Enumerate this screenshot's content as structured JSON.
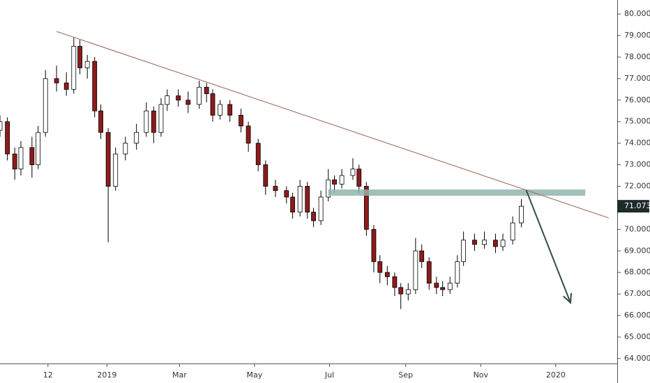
{
  "chart_data": {
    "type": "candlestick",
    "x": [
      -87,
      -81,
      -75,
      -70,
      -61,
      -56,
      -50,
      -41,
      -33,
      -27,
      -22,
      -16,
      -10,
      -5,
      1,
      7,
      15,
      24,
      32,
      38,
      44,
      49,
      58,
      66,
      75,
      81,
      86,
      92,
      100,
      109,
      115,
      123,
      129,
      137,
      146,
      151,
      157,
      163,
      168,
      174,
      180,
      185,
      191,
      200,
      205,
      211,
      217,
      222,
      228,
      234,
      239,
      245,
      251,
      256,
      262,
      268,
      273,
      279,
      285,
      290,
      299,
      307,
      316,
      322,
      330,
      337
    ],
    "open": [
      74.6,
      75.0,
      73.5,
      72.8,
      73.8,
      73.0,
      74.5,
      77.0,
      76.8,
      76.5,
      78.5,
      77.5,
      77.8,
      75.5,
      74.5,
      72.0,
      73.5,
      74.0,
      74.5,
      75.5,
      74.5,
      75.8,
      76.2,
      76.0,
      75.8,
      76.6,
      76.3,
      75.3,
      75.8,
      75.3,
      74.8,
      74.0,
      73.0,
      72.0,
      71.8,
      71.5,
      70.8,
      72.0,
      70.8,
      70.4,
      71.5,
      72.3,
      72.1,
      72.5,
      72.8,
      72.0,
      70.0,
      68.5,
      68.0,
      67.8,
      67.3,
      67.0,
      67.2,
      69.0,
      68.5,
      67.5,
      67.3,
      67.2,
      67.5,
      68.5,
      69.5,
      69.3,
      69.5,
      69.2,
      69.5,
      70.3
    ],
    "high": [
      75.3,
      75.2,
      73.8,
      74.1,
      74.3,
      74.8,
      77.4,
      77.6,
      77.3,
      78.9,
      78.8,
      78.1,
      78.0,
      75.8,
      74.7,
      73.8,
      74.3,
      74.9,
      75.9,
      75.7,
      76.1,
      76.5,
      76.5,
      76.4,
      76.9,
      76.8,
      76.5,
      76.0,
      76.0,
      75.6,
      75.0,
      74.2,
      73.2,
      72.3,
      72.0,
      71.7,
      72.3,
      72.2,
      71.0,
      71.8,
      72.8,
      72.5,
      72.8,
      73.3,
      73.0,
      72.2,
      70.2,
      68.8,
      68.3,
      68.0,
      67.5,
      67.5,
      69.6,
      69.3,
      68.7,
      67.8,
      67.6,
      67.8,
      68.8,
      69.9,
      69.8,
      69.9,
      69.8,
      69.8,
      70.6,
      71.4
    ],
    "low": [
      74.3,
      73.2,
      72.3,
      72.5,
      72.4,
      72.8,
      74.3,
      76.4,
      76.2,
      76.3,
      77.2,
      77.0,
      75.2,
      74.2,
      69.4,
      71.8,
      73.2,
      73.7,
      74.3,
      74.0,
      74.3,
      75.5,
      75.7,
      75.4,
      75.6,
      75.9,
      75.0,
      75.1,
      75.0,
      74.5,
      73.6,
      72.7,
      71.6,
      71.5,
      71.2,
      70.5,
      70.6,
      70.5,
      70.1,
      70.2,
      71.3,
      71.7,
      71.9,
      72.3,
      71.7,
      69.7,
      68.0,
      67.5,
      67.4,
      66.9,
      66.3,
      66.7,
      67.0,
      68.2,
      67.2,
      67.0,
      66.9,
      67.0,
      67.3,
      68.3,
      69.0,
      69.1,
      68.9,
      69.0,
      69.3,
      70.1
    ],
    "close": [
      75.0,
      73.5,
      72.8,
      73.8,
      73.0,
      74.5,
      77.0,
      76.8,
      76.5,
      78.5,
      77.5,
      77.8,
      75.5,
      74.5,
      72.0,
      73.5,
      74.0,
      74.5,
      75.5,
      74.5,
      75.8,
      76.2,
      76.0,
      75.8,
      76.6,
      76.3,
      75.3,
      75.8,
      75.3,
      74.8,
      74.0,
      73.0,
      72.0,
      71.8,
      71.5,
      70.8,
      72.0,
      70.8,
      70.4,
      71.5,
      72.3,
      72.1,
      72.5,
      72.8,
      72.0,
      70.0,
      68.5,
      68.0,
      67.8,
      67.3,
      67.0,
      67.2,
      69.0,
      68.5,
      67.5,
      67.3,
      67.2,
      67.5,
      68.5,
      69.5,
      69.3,
      69.5,
      69.2,
      69.5,
      70.3,
      71.073
    ],
    "up_color": "#ffffff",
    "down_color": "#8e1b1b",
    "wick_color": "#000000",
    "xlim": [
      -87,
      415
    ],
    "xticks": [
      {
        "value": -48,
        "label": "12"
      },
      {
        "value": 0,
        "label": "2019"
      },
      {
        "value": 59,
        "label": "Mar"
      },
      {
        "value": 120,
        "label": "May"
      },
      {
        "value": 181,
        "label": "Jul"
      },
      {
        "value": 243,
        "label": "Sep"
      },
      {
        "value": 304,
        "label": "Nov"
      },
      {
        "value": 365,
        "label": "2020"
      }
    ],
    "ylim": [
      63.77,
      80.65
    ],
    "yticks": [
      {
        "value": 64,
        "label": "64.000"
      },
      {
        "value": 65,
        "label": "65.000"
      },
      {
        "value": 66,
        "label": "66.000"
      },
      {
        "value": 67,
        "label": "67.000"
      },
      {
        "value": 68,
        "label": "68.000"
      },
      {
        "value": 69,
        "label": "69.000"
      },
      {
        "value": 70,
        "label": "70.000"
      },
      {
        "value": 72,
        "label": "72.000"
      },
      {
        "value": 73,
        "label": "73.000"
      },
      {
        "value": 74,
        "label": "74.000"
      },
      {
        "value": 75,
        "label": "75.000"
      },
      {
        "value": 76,
        "label": "76.000"
      },
      {
        "value": 77,
        "label": "77.000"
      },
      {
        "value": 78,
        "label": "78.000"
      },
      {
        "value": 79,
        "label": "79.000"
      },
      {
        "value": 80,
        "label": "80.000"
      }
    ],
    "last_price": {
      "value": 71.073,
      "label": "71.073",
      "color": "#1e2b2b"
    },
    "trendline": {
      "x": [
        -41,
        408
      ],
      "y": [
        79.19,
        70.53
      ],
      "color": "#a8786a"
    },
    "zone": {
      "x": [
        180,
        389
      ],
      "y": [
        71.56,
        71.85
      ],
      "color": "#8fb5ad"
    },
    "arrow": {
      "x": [
        341,
        377
      ],
      "y": [
        71.82,
        66.59
      ],
      "color": "#2f4f3f"
    }
  }
}
